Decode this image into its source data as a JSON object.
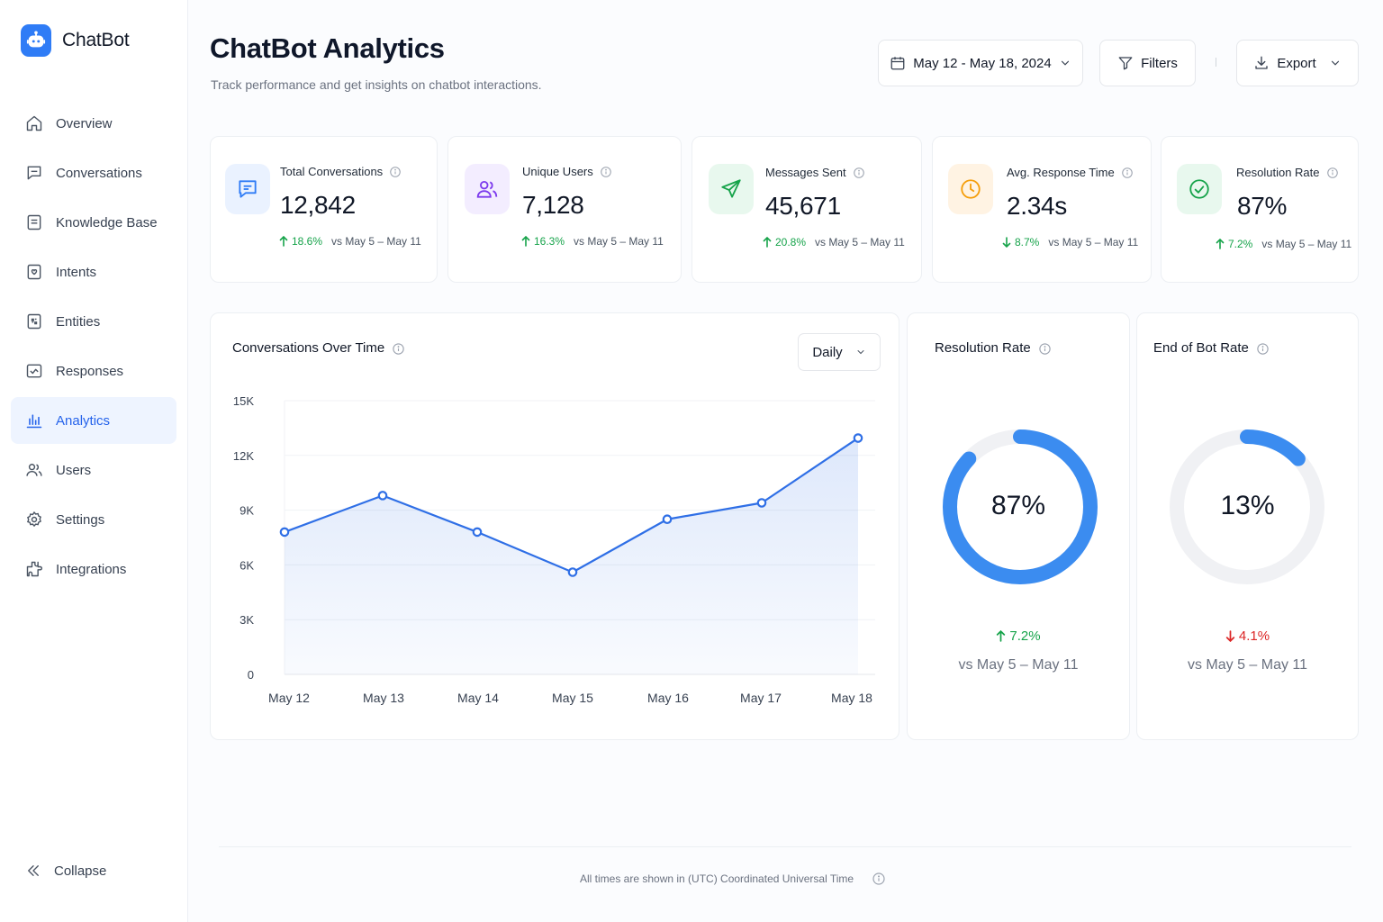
{
  "brand": {
    "name": "ChatBot"
  },
  "sidebar": {
    "items": [
      {
        "label": "Overview",
        "icon": "home-icon"
      },
      {
        "label": "Conversations",
        "icon": "chat-icon"
      },
      {
        "label": "Knowledge Base",
        "icon": "book-icon"
      },
      {
        "label": "Intents",
        "icon": "intent-icon"
      },
      {
        "label": "Entities",
        "icon": "entity-icon"
      },
      {
        "label": "Responses",
        "icon": "response-icon"
      },
      {
        "label": "Analytics",
        "icon": "bar-chart-icon",
        "active": true
      },
      {
        "label": "Users",
        "icon": "users-icon"
      },
      {
        "label": "Settings",
        "icon": "gear-icon"
      },
      {
        "label": "Integrations",
        "icon": "puzzle-icon"
      }
    ],
    "collapse_label": "Collapse"
  },
  "header": {
    "title": "ChatBot Analytics",
    "subtitle": "Track performance and get insights on chatbot interactions.",
    "date_range": "May 12 - May 18, 2024",
    "filters_label": "Filters",
    "export_label": "Export"
  },
  "kpis": [
    {
      "label": "Total Conversations",
      "value": "12,842",
      "change": "18.6%",
      "direction": "up",
      "compare": "vs May 5 – May 11",
      "icon": "message-square-icon",
      "color": "#2f7cf6",
      "bg": "#eaf2ff"
    },
    {
      "label": "Unique Users",
      "value": "7,128",
      "change": "16.3%",
      "direction": "up",
      "compare": "vs May 5 – May 11",
      "icon": "users-icon",
      "color": "#7c3aed",
      "bg": "#f3edff"
    },
    {
      "label": "Messages Sent",
      "value": "45,671",
      "change": "20.8%",
      "direction": "up",
      "compare": "vs May 5 – May 11",
      "icon": "send-icon",
      "color": "#16a34a",
      "bg": "#e8f8ee"
    },
    {
      "label": "Avg. Response Time",
      "value": "2.34s",
      "change": "8.7%",
      "direction": "down",
      "compare": "vs May 5 – May 11",
      "icon": "clock-icon",
      "color": "#f59e0b",
      "bg": "#fff3e3"
    },
    {
      "label": "Resolution Rate",
      "value": "87%",
      "change": "7.2%",
      "direction": "up",
      "compare": "vs May 5 – May 11",
      "icon": "check-circle-icon",
      "color": "#16a34a",
      "bg": "#e8f8ee"
    }
  ],
  "conversations_chart": {
    "title": "Conversations Over Time",
    "granularity": "Daily"
  },
  "resolution_gauge": {
    "title": "Resolution Rate",
    "value_label": "87%",
    "value": 87,
    "change": "7.2%",
    "direction": "up",
    "compare": "vs May 5 – May 11",
    "color": "#3b8cf0"
  },
  "end_of_bot_gauge": {
    "title": "End of Bot Rate",
    "value_label": "13%",
    "value": 13,
    "change": "4.1%",
    "direction": "down",
    "compare": "vs May 5 – May 11",
    "color": "#3b8cf0"
  },
  "footer": {
    "note": "All times are shown in (UTC) Coordinated Universal Time"
  },
  "chart_data": {
    "type": "area",
    "title": "Conversations Over Time",
    "categories": [
      "May 12",
      "May 13",
      "May 14",
      "May 15",
      "May 16",
      "May 17",
      "May 18"
    ],
    "series": [
      {
        "values": [
          7800,
          9800,
          7800,
          5600,
          8500,
          9400,
          12950
        ]
      }
    ],
    "yticks": [
      "0",
      "3K",
      "6K",
      "9K",
      "12K",
      "15K"
    ],
    "ylim": [
      0,
      15000
    ],
    "grid": true,
    "color": "#2f6fe6"
  }
}
